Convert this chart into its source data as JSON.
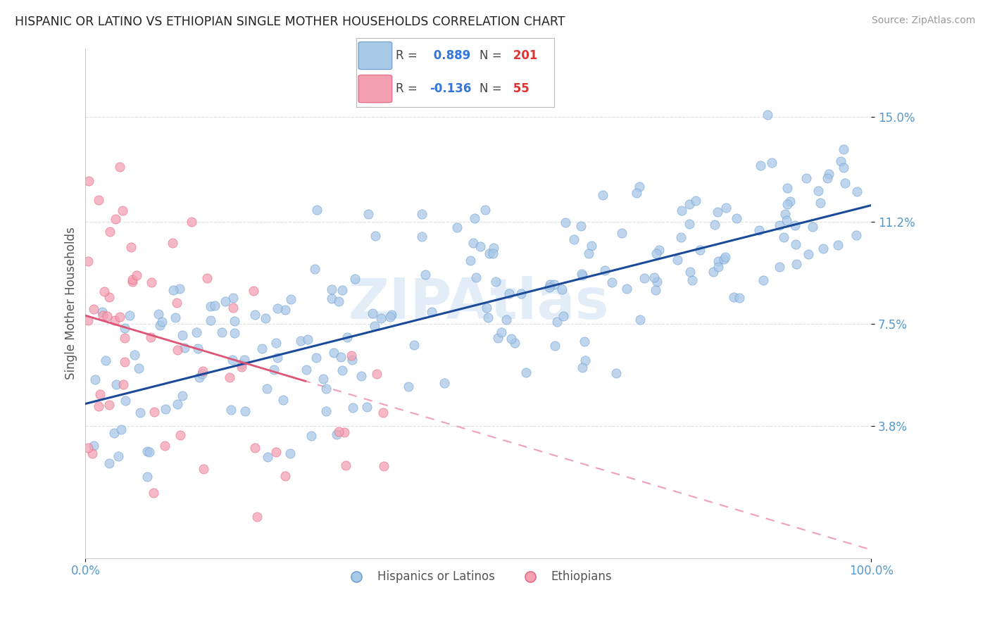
{
  "title": "HISPANIC OR LATINO VS ETHIOPIAN SINGLE MOTHER HOUSEHOLDS CORRELATION CHART",
  "source": "Source: ZipAtlas.com",
  "ylabel": "Single Mother Households",
  "xlim": [
    0.0,
    1.0
  ],
  "ylim": [
    -0.01,
    0.175
  ],
  "yticks": [
    0.038,
    0.075,
    0.112,
    0.15
  ],
  "ytick_labels": [
    "3.8%",
    "7.5%",
    "11.2%",
    "15.0%"
  ],
  "blue_R": 0.889,
  "blue_N": 201,
  "pink_R": -0.136,
  "pink_N": 55,
  "blue_color": "#a8c8e8",
  "blue_edge_color": "#6699cc",
  "pink_color": "#f4a0b0",
  "pink_edge_color": "#e06080",
  "blue_line_color": "#1a4a99",
  "pink_solid_color": "#e05575",
  "pink_dash_color": "#f0a0b8",
  "legend_R_color": "#3377dd",
  "legend_N_color": "#dd3333",
  "title_color": "#222222",
  "source_color": "#999999",
  "ylabel_color": "#555555",
  "axis_tick_color": "#5599cc",
  "grid_color": "#e0e0e0",
  "watermark_color": "#c8ddf0",
  "blue_line_intercept": 0.046,
  "blue_line_slope": 0.072,
  "pink_line_intercept": 0.078,
  "pink_line_slope": -0.085
}
